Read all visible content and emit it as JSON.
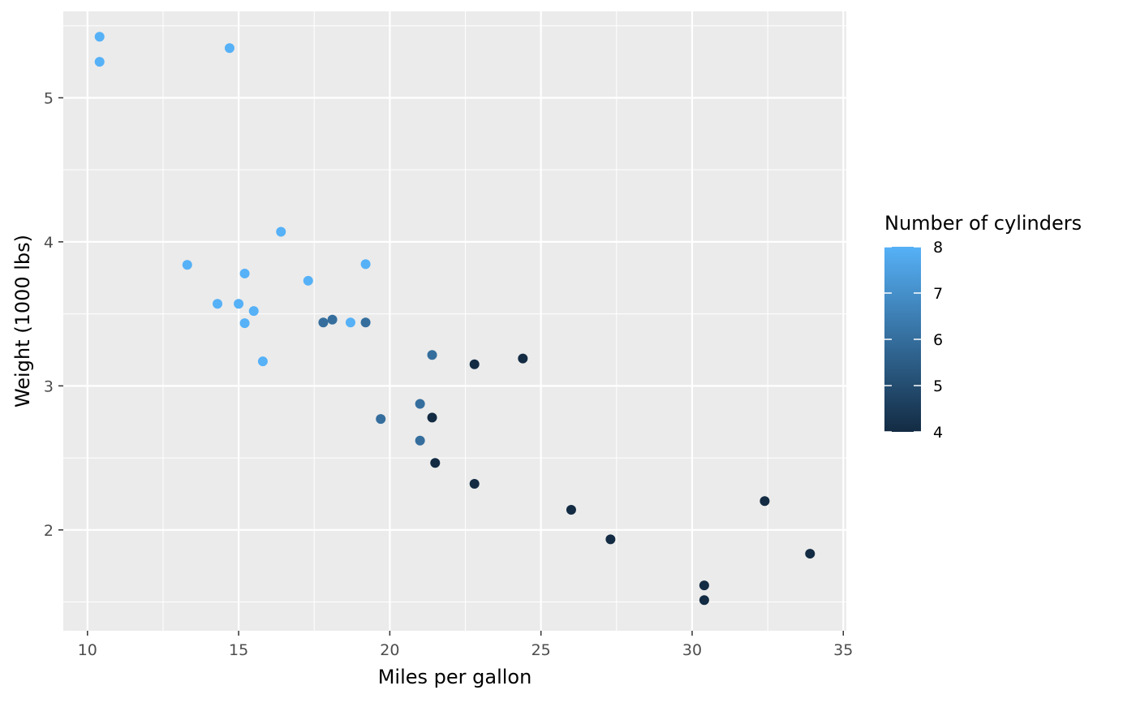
{
  "chart_data": {
    "type": "scatter",
    "title": "",
    "xlabel": "Miles per gallon",
    "ylabel": "Weight (1000 lbs)",
    "xlim": [
      9.2,
      35.1
    ],
    "ylim": [
      1.3,
      5.6
    ],
    "x_ticks": [
      10,
      15,
      20,
      25,
      30,
      35
    ],
    "y_ticks": [
      2,
      3,
      4,
      5
    ],
    "grid": true,
    "panel_background": "#EBEBEB",
    "legend": {
      "title": "Number of cylinders",
      "position": "right",
      "type": "colorbar",
      "min": 4,
      "max": 8,
      "ticks": [
        4,
        5,
        6,
        7,
        8
      ],
      "color_low": "#132B43",
      "color_high": "#56B1F7"
    },
    "points": [
      {
        "x": 21.0,
        "y": 2.62,
        "cyl": 6
      },
      {
        "x": 21.0,
        "y": 2.875,
        "cyl": 6
      },
      {
        "x": 22.8,
        "y": 2.32,
        "cyl": 4
      },
      {
        "x": 21.4,
        "y": 3.215,
        "cyl": 6
      },
      {
        "x": 18.7,
        "y": 3.44,
        "cyl": 8
      },
      {
        "x": 18.1,
        "y": 3.46,
        "cyl": 6
      },
      {
        "x": 14.3,
        "y": 3.57,
        "cyl": 8
      },
      {
        "x": 24.4,
        "y": 3.19,
        "cyl": 4
      },
      {
        "x": 22.8,
        "y": 3.15,
        "cyl": 4
      },
      {
        "x": 19.2,
        "y": 3.44,
        "cyl": 6
      },
      {
        "x": 17.8,
        "y": 3.44,
        "cyl": 6
      },
      {
        "x": 16.4,
        "y": 4.07,
        "cyl": 8
      },
      {
        "x": 17.3,
        "y": 3.73,
        "cyl": 8
      },
      {
        "x": 15.2,
        "y": 3.78,
        "cyl": 8
      },
      {
        "x": 10.4,
        "y": 5.25,
        "cyl": 8
      },
      {
        "x": 10.4,
        "y": 5.424,
        "cyl": 8
      },
      {
        "x": 14.7,
        "y": 5.345,
        "cyl": 8
      },
      {
        "x": 32.4,
        "y": 2.2,
        "cyl": 4
      },
      {
        "x": 30.4,
        "y": 1.615,
        "cyl": 4
      },
      {
        "x": 33.9,
        "y": 1.835,
        "cyl": 4
      },
      {
        "x": 21.5,
        "y": 2.465,
        "cyl": 4
      },
      {
        "x": 15.5,
        "y": 3.52,
        "cyl": 8
      },
      {
        "x": 15.2,
        "y": 3.435,
        "cyl": 8
      },
      {
        "x": 13.3,
        "y": 3.84,
        "cyl": 8
      },
      {
        "x": 19.2,
        "y": 3.845,
        "cyl": 8
      },
      {
        "x": 27.3,
        "y": 1.935,
        "cyl": 4
      },
      {
        "x": 26.0,
        "y": 2.14,
        "cyl": 4
      },
      {
        "x": 30.4,
        "y": 1.513,
        "cyl": 4
      },
      {
        "x": 15.8,
        "y": 3.17,
        "cyl": 8
      },
      {
        "x": 19.7,
        "y": 2.77,
        "cyl": 6
      },
      {
        "x": 15.0,
        "y": 3.57,
        "cyl": 8
      },
      {
        "x": 21.4,
        "y": 2.78,
        "cyl": 4
      }
    ]
  }
}
